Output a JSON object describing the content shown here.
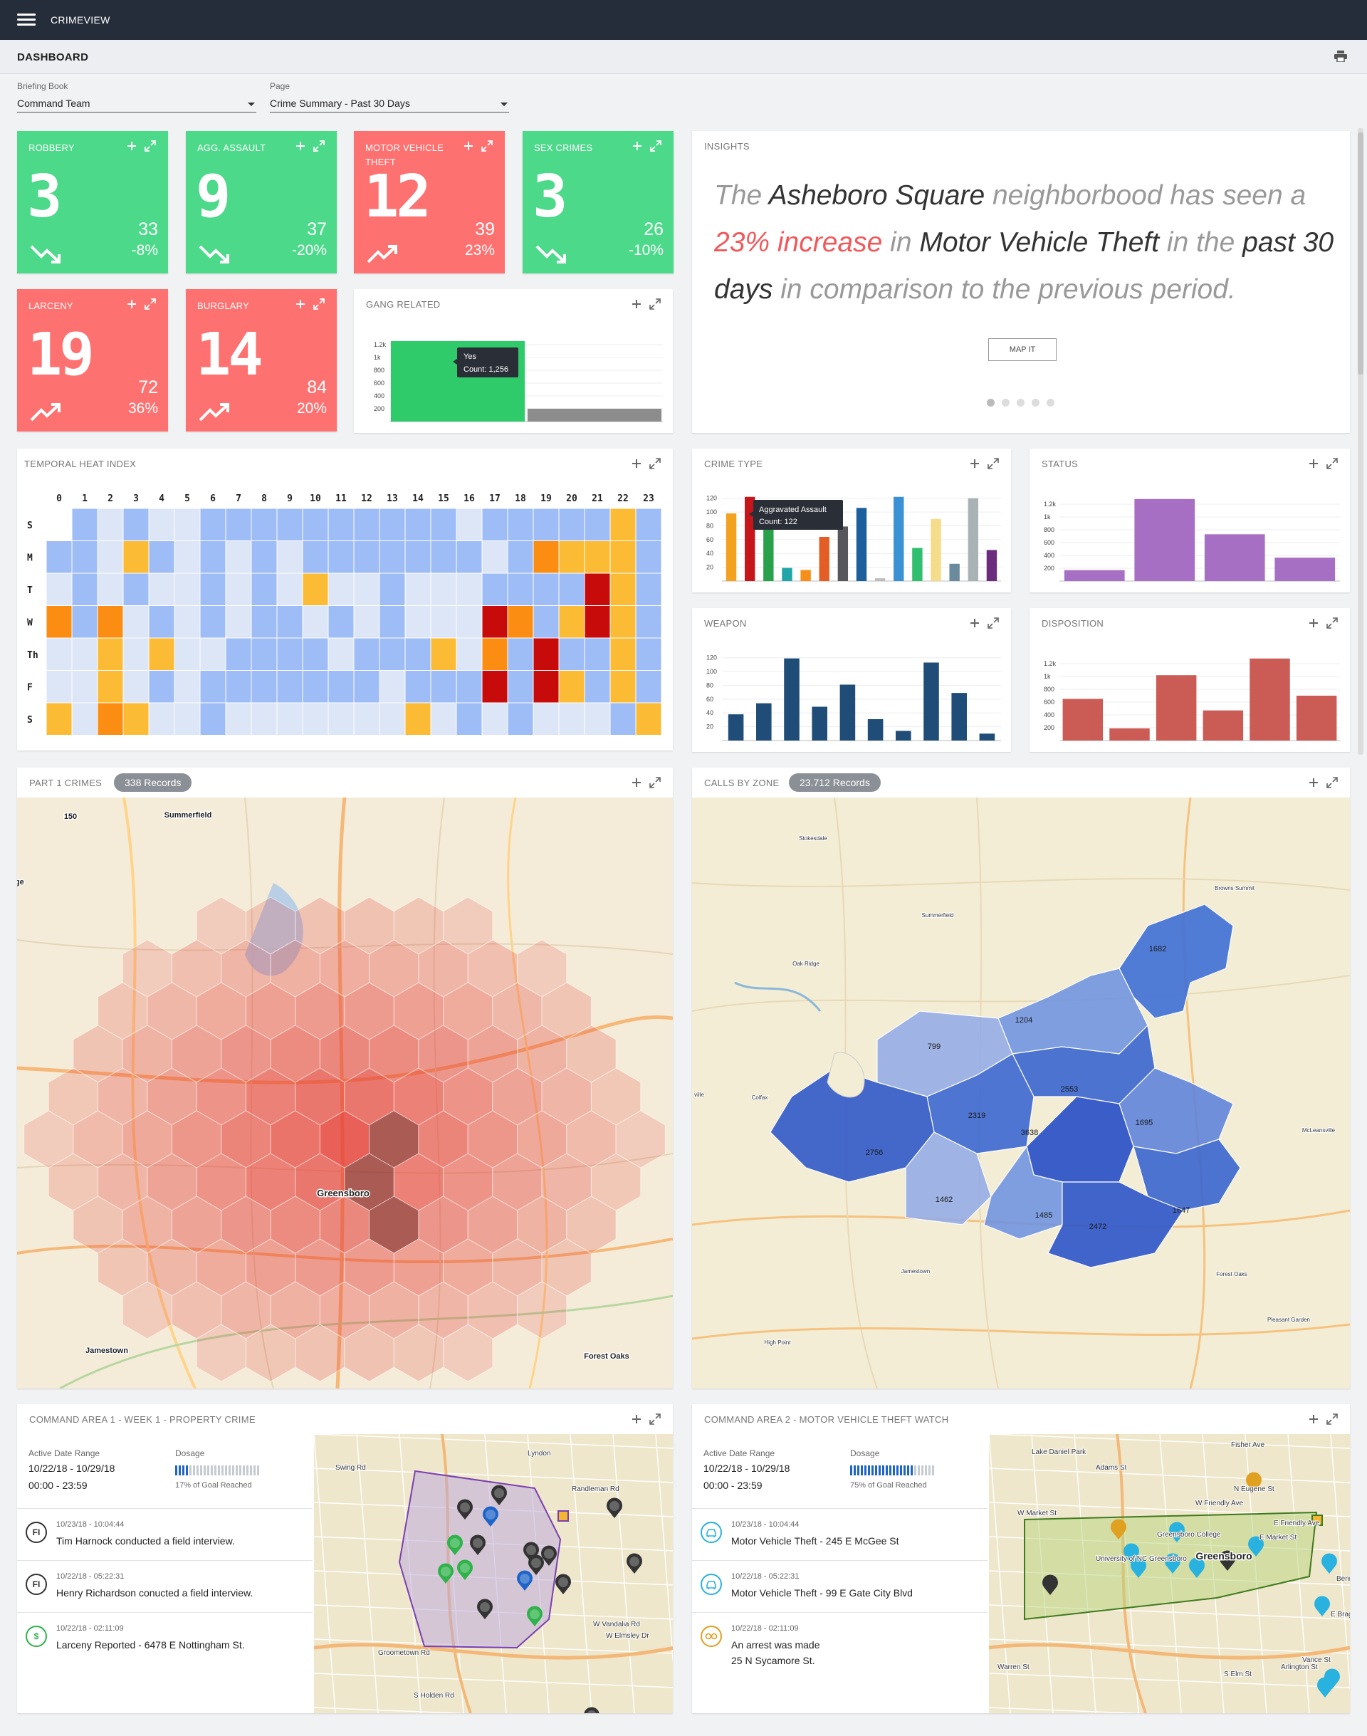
{
  "app": {
    "title": "CRIMEVIEW"
  },
  "page": {
    "title": "DASHBOARD"
  },
  "selectors": {
    "briefing_book": {
      "label": "Briefing Book",
      "value": "Command Team"
    },
    "page": {
      "label": "Page",
      "value": "Crime Summary - Past 30 Days"
    }
  },
  "kpis": [
    {
      "title": "ROBBERY",
      "value": "3",
      "count": "33",
      "change": "-8%",
      "trend": "down",
      "color": "#4cd98a"
    },
    {
      "title": "AGG. ASSAULT",
      "value": "9",
      "count": "37",
      "change": "-20%",
      "trend": "down",
      "color": "#4cd98a"
    },
    {
      "title": "MOTOR VEHICLE THEFT",
      "value": "12",
      "count": "39",
      "change": "23%",
      "trend": "up",
      "color": "#fd7170"
    },
    {
      "title": "SEX CRIMES",
      "value": "3",
      "count": "26",
      "change": "-10%",
      "trend": "down",
      "color": "#4cd98a"
    },
    {
      "title": "LARCENY",
      "value": "19",
      "count": "72",
      "change": "36%",
      "trend": "up",
      "color": "#fd7170"
    },
    {
      "title": "BURGLARY",
      "value": "14",
      "count": "84",
      "change": "20%",
      "trend": "up",
      "color": "#fd7170"
    }
  ],
  "insights": {
    "title": "INSIGHTS",
    "w1": "The",
    "neighborhood": "Asheboro Square",
    "w2": "neighborbood has seen a",
    "increase": "23% increase",
    "w3": "in",
    "crime": "Motor Vehicle Theft",
    "w4": "in the",
    "period": "past 30 days",
    "w5": "in comparison to the previous period.",
    "button": "MAP IT",
    "pages": 5,
    "active_page": 1
  },
  "temporal": {
    "title": "TEMPORAL HEAT INDEX",
    "hours": [
      "0",
      "1",
      "2",
      "3",
      "4",
      "5",
      "6",
      "7",
      "8",
      "9",
      "10",
      "11",
      "12",
      "13",
      "14",
      "15",
      "16",
      "17",
      "18",
      "19",
      "20",
      "21",
      "22",
      "23"
    ],
    "days": [
      "S",
      "M",
      "T",
      "W",
      "Th",
      "F",
      "S"
    ],
    "levels": [
      [
        0,
        2,
        1,
        2,
        1,
        1,
        2,
        2,
        2,
        2,
        2,
        2,
        2,
        2,
        2,
        2,
        1,
        2,
        2,
        2,
        2,
        2,
        3,
        2
      ],
      [
        2,
        2,
        1,
        3,
        2,
        1,
        2,
        1,
        2,
        1,
        2,
        2,
        2,
        2,
        2,
        2,
        2,
        1,
        2,
        4,
        3,
        3,
        3,
        2
      ],
      [
        1,
        2,
        1,
        2,
        1,
        1,
        2,
        1,
        2,
        1,
        3,
        1,
        1,
        2,
        1,
        1,
        1,
        2,
        2,
        2,
        2,
        5,
        3,
        2
      ],
      [
        4,
        2,
        4,
        1,
        2,
        1,
        2,
        1,
        2,
        2,
        1,
        2,
        1,
        2,
        1,
        1,
        1,
        5,
        4,
        2,
        3,
        5,
        3,
        2
      ],
      [
        1,
        1,
        3,
        1,
        3,
        1,
        1,
        2,
        2,
        2,
        2,
        1,
        2,
        2,
        2,
        3,
        1,
        4,
        2,
        5,
        2,
        2,
        3,
        2
      ],
      [
        1,
        1,
        3,
        1,
        2,
        1,
        2,
        2,
        2,
        2,
        2,
        2,
        2,
        1,
        2,
        2,
        2,
        5,
        2,
        5,
        3,
        2,
        3,
        2
      ],
      [
        3,
        1,
        4,
        3,
        1,
        1,
        2,
        1,
        1,
        1,
        1,
        1,
        1,
        1,
        3,
        1,
        2,
        1,
        2,
        1,
        1,
        1,
        2,
        3
      ]
    ],
    "palette": [
      "#ffffff",
      "#dce6f7",
      "#9ebcf5",
      "#fbbb35",
      "#fb8d12",
      "#c70b0a"
    ]
  },
  "cards": {
    "gang": {
      "title": "GANG RELATED"
    },
    "crime_type": {
      "title": "CRIME TYPE"
    },
    "status": {
      "title": "STATUS"
    },
    "weapon": {
      "title": "WEAPON"
    },
    "disposition": {
      "title": "DISPOSITION"
    }
  },
  "tooltips": {
    "gang": {
      "label": "Yes",
      "count": "Count: 1,256"
    },
    "crime": {
      "label": "Aggravated Assault",
      "count": "Count: 122"
    }
  },
  "chart_data": [
    {
      "id": "gang",
      "type": "bar",
      "title": "GANG RELATED",
      "categories": [
        "Yes",
        "No"
      ],
      "values": [
        1256,
        200
      ],
      "colors": [
        "#2fcb6a",
        "#8c8c8c"
      ],
      "yticks": [
        "200",
        "400",
        "600",
        "800",
        "1k",
        "1.2k"
      ],
      "ylim": [
        0,
        1400
      ]
    },
    {
      "id": "crime_type",
      "type": "bar",
      "title": "CRIME TYPE",
      "values": [
        98,
        122,
        112,
        19,
        16,
        64,
        79,
        106,
        4,
        122,
        48,
        90,
        25,
        120,
        45
      ],
      "colors": [
        "#f2a21f",
        "#c7161b",
        "#29a14a",
        "#20a6a8",
        "#f58f1a",
        "#e35d27",
        "#57565c",
        "#1d5f9d",
        "#bdbdbd",
        "#3a91d4",
        "#2fbf6e",
        "#f4dc8a",
        "#6a8a9e",
        "#a9b3b6",
        "#6b2c7d"
      ],
      "yticks": [
        "20",
        "40",
        "60",
        "80",
        "100",
        "120"
      ],
      "ylim": [
        0,
        130
      ]
    },
    {
      "id": "status",
      "type": "bar",
      "title": "STATUS",
      "values": [
        170,
        1280,
        730,
        365
      ],
      "colors": [
        "#a76fc4"
      ],
      "yticks": [
        "200",
        "400",
        "600",
        "800",
        "1k",
        "1.2k"
      ],
      "ylim": [
        0,
        1400
      ]
    },
    {
      "id": "weapon",
      "type": "bar",
      "title": "WEAPON",
      "values": [
        38,
        54,
        119,
        49,
        81,
        31,
        14,
        113,
        69,
        10
      ],
      "colors": [
        "#1f4d78"
      ],
      "yticks": [
        "20",
        "40",
        "60",
        "80",
        "100",
        "120"
      ],
      "ylim": [
        0,
        130
      ]
    },
    {
      "id": "disposition",
      "type": "bar",
      "title": "DISPOSITION",
      "values": [
        650,
        190,
        1020,
        470,
        1280,
        700
      ],
      "colors": [
        "#cb5c55"
      ],
      "yticks": [
        "200",
        "400",
        "600",
        "800",
        "1k",
        "1.2k"
      ],
      "ylim": [
        0,
        1400
      ]
    }
  ],
  "maps": {
    "part1": {
      "title": "PART 1 CRIMES",
      "records": "338 Records",
      "labels": [
        "Summerfield",
        "Greensboro",
        "Jamestown",
        "Forest Oaks",
        "dge",
        "150"
      ]
    },
    "zones": {
      "title": "CALLS BY ZONE",
      "records": "23.712 Records",
      "zone_values": [
        "1682",
        "1204",
        "799",
        "2553",
        "2319",
        "1695",
        "2756",
        "3638",
        "1462",
        "1485",
        "1647",
        "2472"
      ],
      "labels": [
        "Stokesdale",
        "Summerfield",
        "Oak Ridge",
        "Browns Summit",
        "Colfax",
        "McLeansville",
        "Jamestown",
        "High Point",
        "Forest Oaks",
        "Pleasant Garden",
        "ville"
      ]
    }
  },
  "command": [
    {
      "title": "COMMAND AREA 1 - WEEK 1 - PROPERTY CRIME",
      "range_label": "Active Date Range",
      "range": "10/22/18 - 10/29/18",
      "time": "00:00 - 23:59",
      "dosage_label": "Dosage",
      "dosage_pct": 0.17,
      "dosage_note": "17% of Goal Reached",
      "feed": [
        {
          "icon": "FI",
          "date": "10/23/18 - 10:04:44",
          "text": "Tim Harnock conducted a field interview.",
          "text2": ""
        },
        {
          "icon": "FI",
          "date": "10/22/18 - 05:22:31",
          "text": "Henry Richardson conucted a field interview.",
          "text2": ""
        },
        {
          "icon": "$",
          "date": "10/22/18 - 02:11:09",
          "text": "Larceny Reported - 6478 E Nottingham St.",
          "text2": ""
        }
      ]
    },
    {
      "title": "COMMAND AREA 2 - MOTOR VEHICLE THEFT WATCH",
      "range_label": "Active Date Range",
      "range": "10/22/18 - 10/29/18",
      "time": "00:00 - 23:59",
      "dosage_label": "Dosage",
      "dosage_pct": 0.75,
      "dosage_note": "75% of Goal Reached",
      "feed": [
        {
          "icon": "car",
          "date": "10/23/18 - 10:04:44",
          "text": "Motor Vehicle Theft - 245 E McGee St",
          "text2": ""
        },
        {
          "icon": "car",
          "date": "10/22/18 - 05:22:31",
          "text": "Motor Vehicle Theft - 99 E Gate City Blvd",
          "text2": ""
        },
        {
          "icon": "cuffs",
          "date": "10/22/18 - 02:11:09",
          "text": "An arrest was made",
          "text2": "25 N Sycamore St."
        }
      ]
    }
  ],
  "map_streets": {
    "a1": [
      "Lyndon",
      "Randleman Rd",
      "W Vandalia Rd",
      "S Holden Rd",
      "W Elmsley Dr",
      "Swing Rd",
      "Groometown Rd"
    ],
    "a2": [
      "Lake Daniel Park",
      "Fisher Ave",
      "W Market St",
      "W Friendly Ave",
      "E Friendly Ave",
      "Greensboro",
      "Greensboro College",
      "University of NC Greensboro",
      "E Market St",
      "Warren St",
      "Adams St",
      "N Eugene St",
      "S Elm St",
      "E Bragg St",
      "Arlington St",
      "Vance St",
      "Benn College"
    ]
  }
}
